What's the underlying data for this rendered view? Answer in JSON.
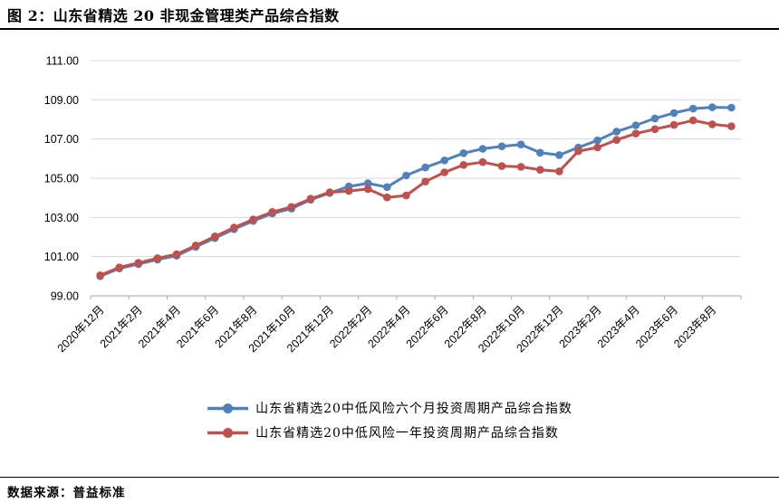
{
  "header": {
    "title": "图 2：山东省精选 20 非现金管理类产品综合指数"
  },
  "footer": {
    "source": "数据来源：普益标准"
  },
  "chart_data": {
    "type": "line",
    "title": "图 2：山东省精选 20 非现金管理类产品综合指数",
    "xlabel": "",
    "ylabel": "",
    "ylim": [
      99.0,
      111.0
    ],
    "ytick_step": 2,
    "ytick_labels": [
      "99.00",
      "101.00",
      "103.00",
      "105.00",
      "107.00",
      "109.00",
      "111.00"
    ],
    "x_tick_every": 2,
    "grid": "horizontal",
    "legend_position": "bottom",
    "categories": [
      "2020年12月",
      "2021年1月",
      "2021年2月",
      "2021年3月",
      "2021年4月",
      "2021年5月",
      "2021年6月",
      "2021年7月",
      "2021年8月",
      "2021年9月",
      "2021年10月",
      "2021年11月",
      "2021年12月",
      "2022年1月",
      "2022年2月",
      "2022年3月",
      "2022年4月",
      "2022年5月",
      "2022年6月",
      "2022年7月",
      "2022年8月",
      "2022年9月",
      "2022年10月",
      "2022年11月",
      "2022年12月",
      "2023年1月",
      "2023年2月",
      "2023年3月",
      "2023年4月",
      "2023年5月",
      "2023年6月",
      "2023年7月",
      "2023年8月",
      "2023年9月"
    ],
    "shown_x_labels": [
      "2020年12月",
      "2021年2月",
      "2021年4月",
      "2021年6月",
      "2021年8月",
      "2021年10月",
      "2021年12月",
      "2022年2月",
      "2022年4月",
      "2022年6月",
      "2022年8月",
      "2022年10月",
      "2022年12月",
      "2023年2月",
      "2023年4月",
      "2023年6月",
      "2023年8月"
    ],
    "series": [
      {
        "name": "山东省精选20中低风险六个月投资周期产品综合指数",
        "color": "#4F81BD",
        "values": [
          100.0,
          100.4,
          100.62,
          100.85,
          101.05,
          101.5,
          101.95,
          102.4,
          102.82,
          103.2,
          103.45,
          103.9,
          104.25,
          104.58,
          104.74,
          104.55,
          105.14,
          105.55,
          105.91,
          106.28,
          106.5,
          106.63,
          106.72,
          106.3,
          106.18,
          106.57,
          106.93,
          107.38,
          107.7,
          108.05,
          108.33,
          108.55,
          108.62,
          108.6
        ]
      },
      {
        "name": "山东省精选20中低风险一年投资周期产品综合指数",
        "color": "#C0504D",
        "values": [
          100.05,
          100.45,
          100.68,
          100.92,
          101.12,
          101.57,
          102.03,
          102.48,
          102.9,
          103.28,
          103.53,
          103.95,
          104.28,
          104.35,
          104.45,
          104.02,
          104.12,
          104.83,
          105.3,
          105.68,
          105.82,
          105.62,
          105.58,
          105.43,
          105.35,
          106.38,
          106.57,
          106.95,
          107.28,
          107.5,
          107.72,
          107.95,
          107.75,
          107.65
        ]
      }
    ],
    "axis_colors": {
      "gridline": "#D9D9D9",
      "axis_line": "#A6A6A6",
      "tick_text": "#000000"
    }
  }
}
